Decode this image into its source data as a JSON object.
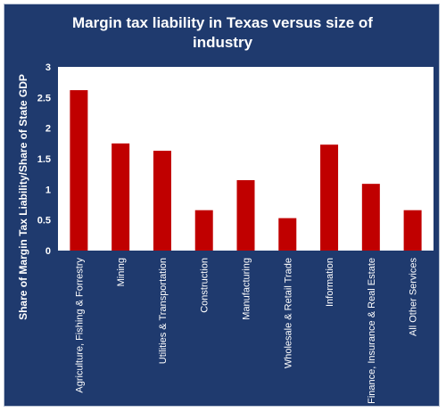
{
  "chart_data": {
    "type": "bar",
    "title_line1": "Margin tax liability in Texas versus size of",
    "title_line2": "industry",
    "xlabel": "",
    "ylabel": "Share of Margin Tax Liability/Share of State GDP",
    "ylim": [
      0,
      3
    ],
    "yticks": [
      "0",
      "0.5",
      "1",
      "1.5",
      "2",
      "2.5",
      "3"
    ],
    "categories": [
      "Agriculture, Fishing & Forrestry",
      "Mining",
      "Utilities & Transportation",
      "Construction",
      "Manufacturing",
      "Wholesale & Retail Trade",
      "Information",
      "Finance, Insurance & Real Estate",
      "All Other Services"
    ],
    "values": [
      2.62,
      1.75,
      1.63,
      0.66,
      1.15,
      0.53,
      1.73,
      1.09,
      0.66
    ],
    "grid": false,
    "legend": "none",
    "bar_color": "#c00000",
    "background_color": "#1f3a6e",
    "plot_background_color": "#ffffff"
  }
}
